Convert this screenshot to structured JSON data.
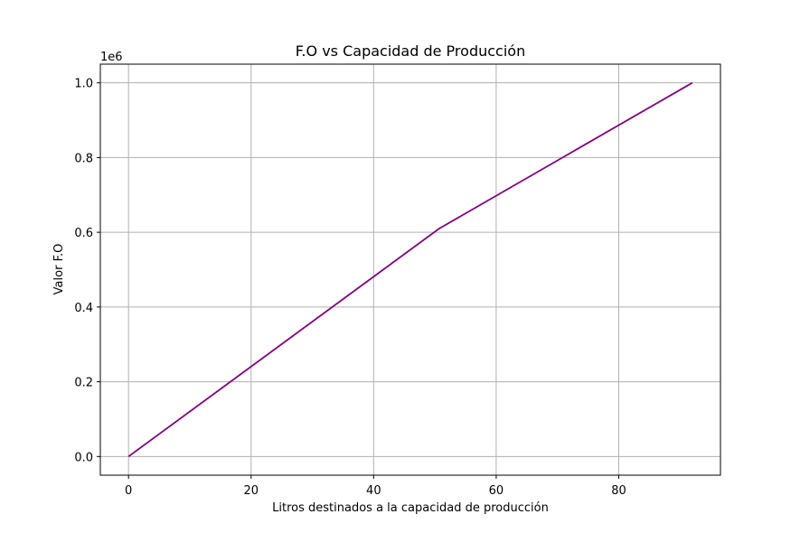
{
  "chart_data": {
    "type": "line",
    "title": "F.O vs Capacidad de Producción",
    "xlabel": "Litros destinados a la capacidad de producción",
    "ylabel": "Valor F.O",
    "y_offset_label": "1e6",
    "xlim": [
      -4.6,
      96.6
    ],
    "ylim": [
      -0.05,
      1.05
    ],
    "x_ticks": [
      0,
      20,
      40,
      60,
      80
    ],
    "x_tick_labels": [
      "0",
      "20",
      "40",
      "60",
      "80"
    ],
    "y_ticks": [
      0.0,
      0.2,
      0.4,
      0.6,
      0.8,
      1.0
    ],
    "y_tick_labels": [
      "0.0",
      "0.2",
      "0.4",
      "0.6",
      "0.8",
      "1.0"
    ],
    "grid": true,
    "line_color": "#800080",
    "series": [
      {
        "x": [
          0,
          50.7,
          92
        ],
        "y": [
          0.0,
          0.61,
          1.0
        ]
      }
    ]
  }
}
